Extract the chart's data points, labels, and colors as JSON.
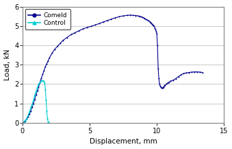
{
  "title": "",
  "xlabel": "Displacement, mm",
  "ylabel": "Load, kN",
  "xlim": [
    0,
    15
  ],
  "ylim": [
    0,
    6
  ],
  "xticks": [
    0,
    5,
    10,
    15
  ],
  "yticks": [
    0,
    1,
    2,
    3,
    4,
    5,
    6
  ],
  "comeld_color": "#00008B",
  "control_color": "#00CED1",
  "background_color": "#ffffff",
  "plot_bg_color": "#ffffff",
  "legend_labels": [
    "Comeld",
    "Control"
  ],
  "border_color": "#808080",
  "grid_color": "#c0c0c0",
  "comeld_x": [
    0.0,
    0.05,
    0.1,
    0.15,
    0.2,
    0.3,
    0.4,
    0.5,
    0.6,
    0.7,
    0.8,
    0.9,
    1.0,
    1.1,
    1.2,
    1.3,
    1.4,
    1.5,
    1.6,
    1.7,
    1.8,
    1.9,
    2.0,
    2.2,
    2.4,
    2.6,
    2.8,
    3.0,
    3.3,
    3.6,
    3.9,
    4.2,
    4.5,
    4.8,
    5.1,
    5.4,
    5.7,
    6.0,
    6.3,
    6.6,
    6.9,
    7.2,
    7.5,
    7.8,
    8.0,
    8.2,
    8.4,
    8.6,
    8.7,
    8.8,
    8.9,
    9.0,
    9.1,
    9.2,
    9.3,
    9.4,
    9.5,
    9.55,
    9.6,
    9.65,
    9.7,
    9.75,
    9.8,
    9.85,
    9.9,
    9.95,
    10.0,
    10.05,
    10.1,
    10.15,
    10.2,
    10.25,
    10.3,
    10.35,
    10.4,
    10.45,
    10.5,
    10.55,
    10.6,
    10.7,
    10.8,
    10.9,
    11.0,
    11.2,
    11.4,
    11.6,
    11.8,
    12.0,
    12.2,
    12.4,
    12.6,
    12.8,
    13.0,
    13.2,
    13.4
  ],
  "comeld_y": [
    0.0,
    0.02,
    0.05,
    0.08,
    0.12,
    0.2,
    0.3,
    0.45,
    0.6,
    0.8,
    1.0,
    1.2,
    1.45,
    1.65,
    1.85,
    2.1,
    2.3,
    2.5,
    2.7,
    2.9,
    3.05,
    3.2,
    3.35,
    3.6,
    3.8,
    3.95,
    4.1,
    4.25,
    4.4,
    4.55,
    4.65,
    4.75,
    4.85,
    4.92,
    4.98,
    5.05,
    5.12,
    5.2,
    5.28,
    5.35,
    5.42,
    5.48,
    5.52,
    5.55,
    5.56,
    5.55,
    5.54,
    5.52,
    5.5,
    5.48,
    5.45,
    5.42,
    5.38,
    5.34,
    5.3,
    5.26,
    5.22,
    5.18,
    5.14,
    5.1,
    5.06,
    5.02,
    4.98,
    4.9,
    4.82,
    4.72,
    4.6,
    4.0,
    2.8,
    2.3,
    2.0,
    1.9,
    1.85,
    1.82,
    1.8,
    1.82,
    1.85,
    1.9,
    1.95,
    2.0,
    2.05,
    2.1,
    2.15,
    2.2,
    2.28,
    2.38,
    2.48,
    2.55,
    2.58,
    2.6,
    2.62,
    2.63,
    2.63,
    2.62,
    2.6
  ],
  "control_x": [
    0.0,
    0.1,
    0.2,
    0.3,
    0.4,
    0.5,
    0.6,
    0.7,
    0.8,
    0.9,
    1.0,
    1.1,
    1.2,
    1.3,
    1.4,
    1.5,
    1.6,
    1.65,
    1.7,
    1.75,
    1.8,
    1.85,
    1.9,
    1.95,
    2.0
  ],
  "control_y": [
    0.0,
    0.05,
    0.12,
    0.22,
    0.38,
    0.55,
    0.75,
    0.95,
    1.15,
    1.42,
    1.62,
    1.82,
    2.0,
    2.1,
    2.16,
    2.2,
    2.15,
    2.05,
    1.75,
    1.2,
    0.65,
    0.25,
    0.08,
    0.02,
    0.0
  ]
}
